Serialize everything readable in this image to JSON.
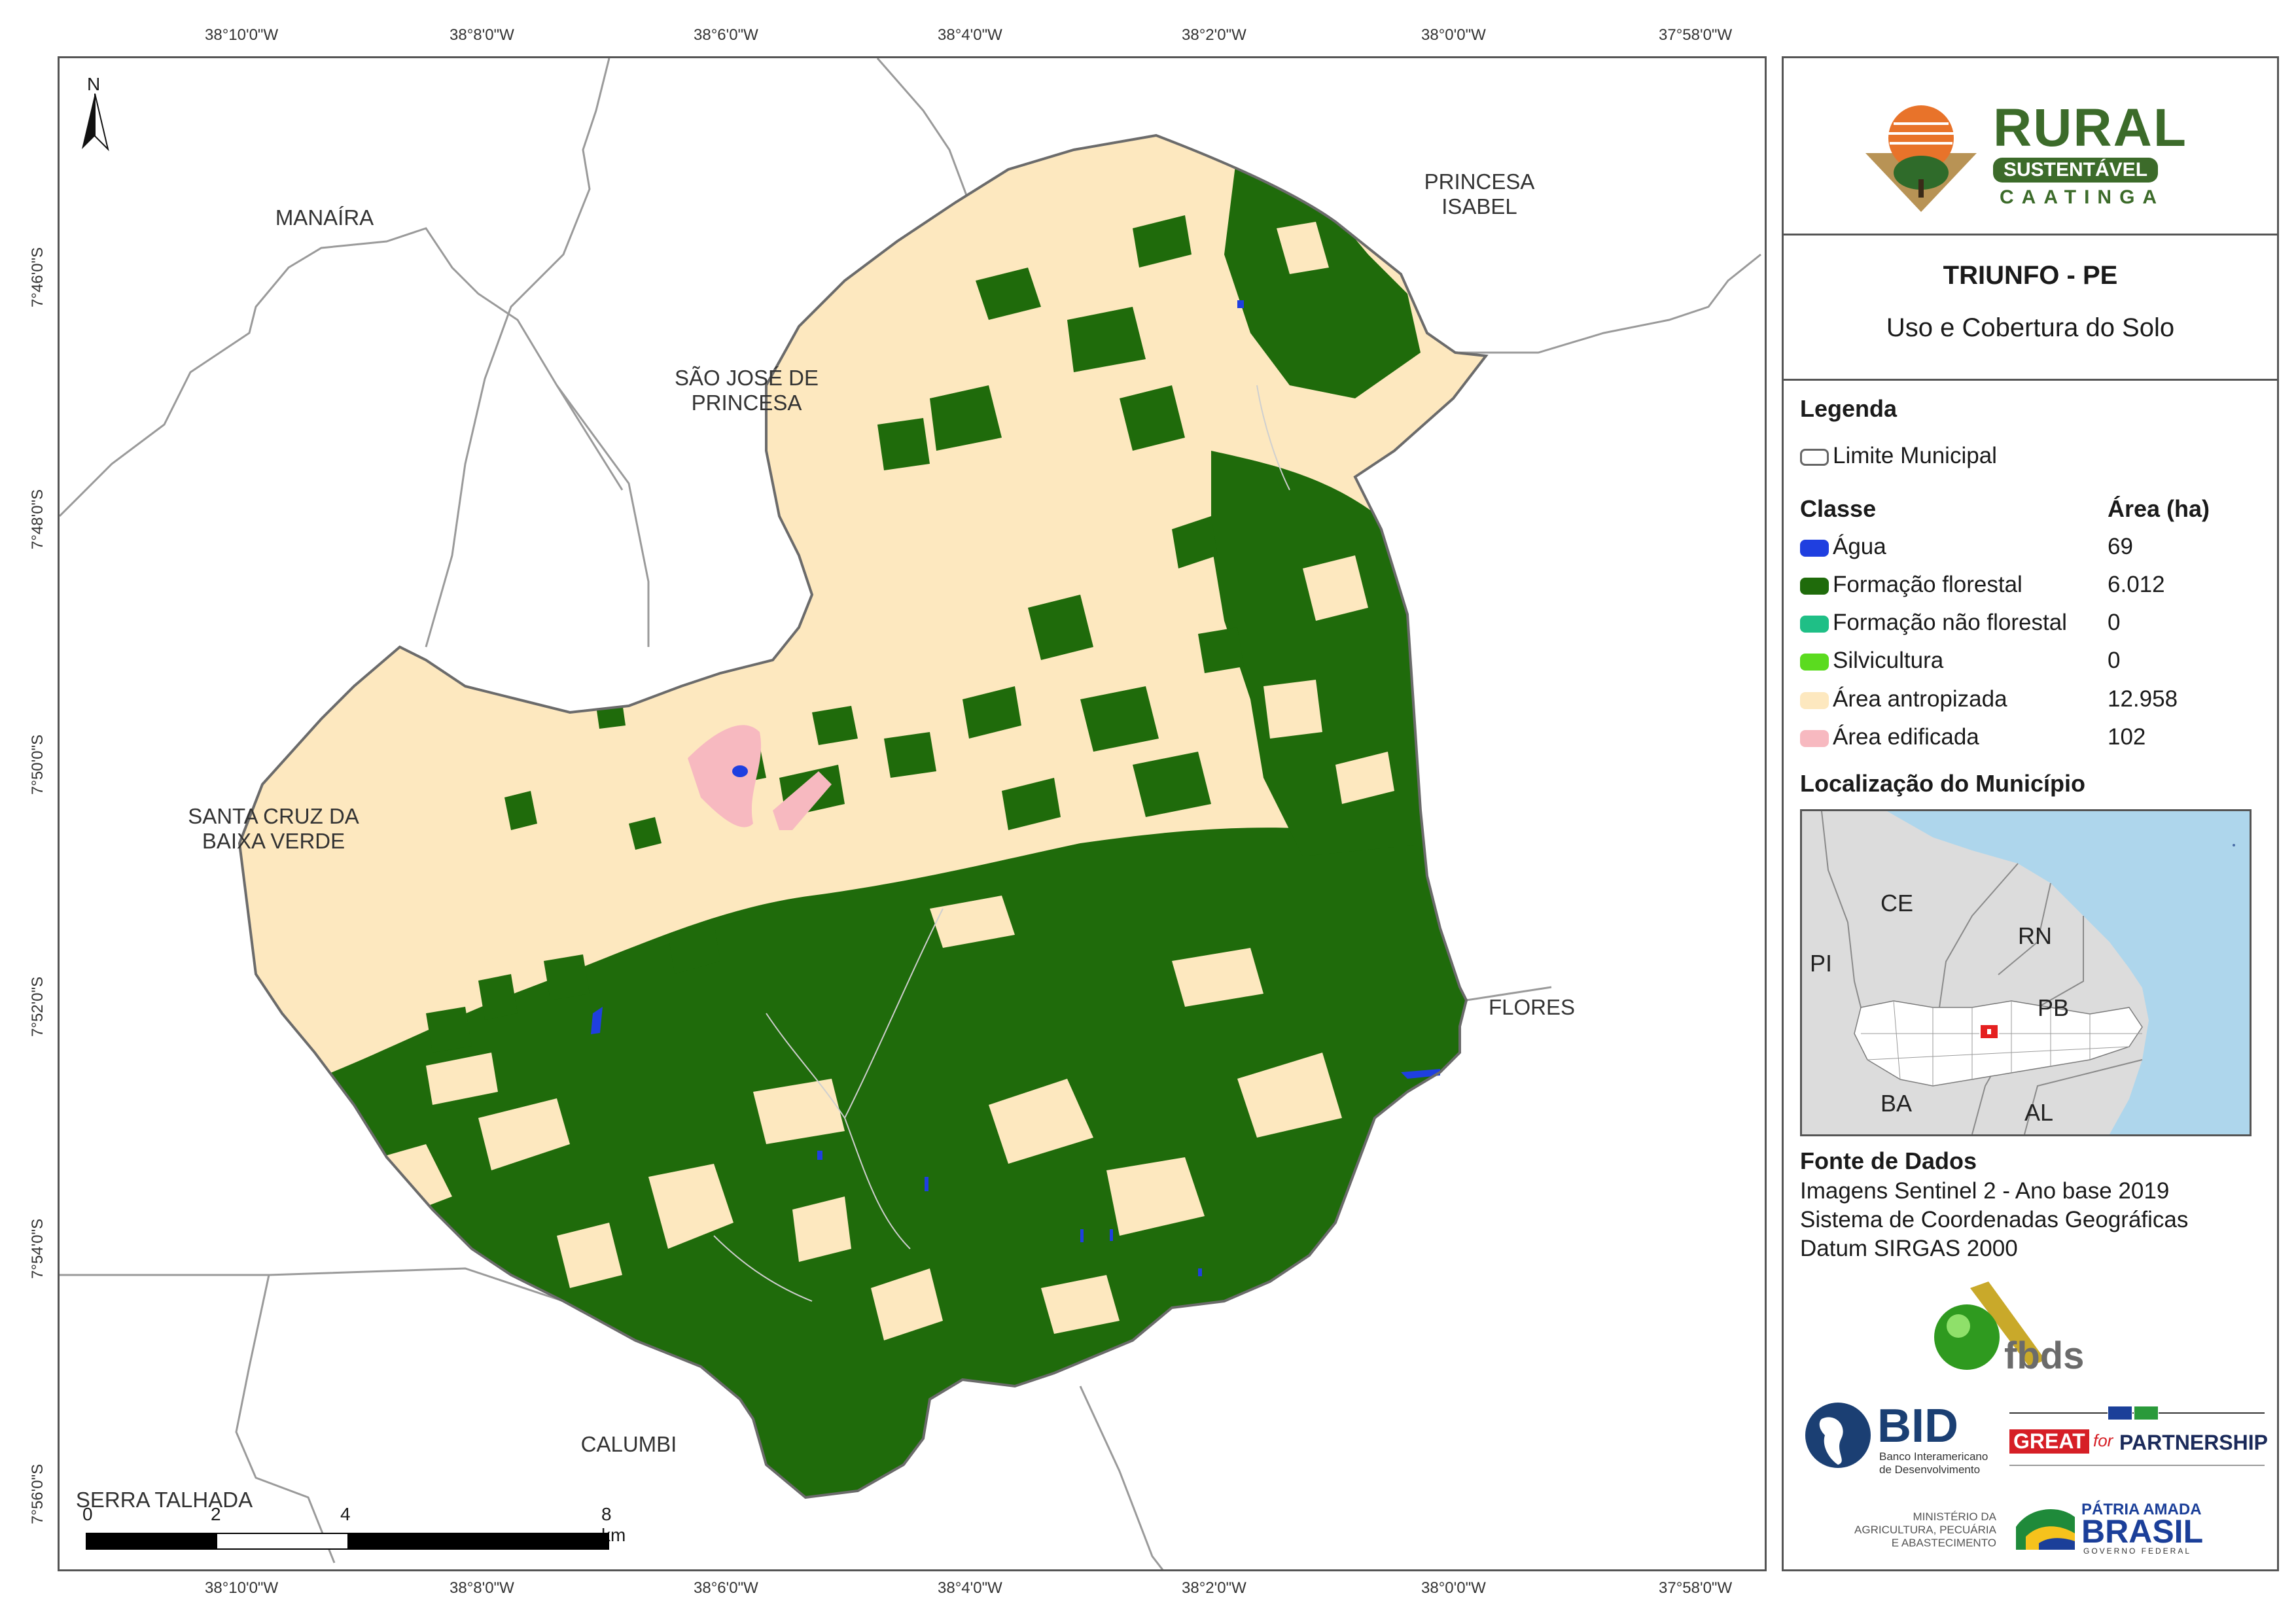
{
  "coords": {
    "top_lon": [
      "38°10'0\"W",
      "38°8'0\"W",
      "38°6'0\"W",
      "38°4'0\"W",
      "38°2'0\"W",
      "38°0'0\"W",
      "37°58'0\"W"
    ],
    "bottom_lon": [
      "38°10'0\"W",
      "38°8'0\"W",
      "38°6'0\"W",
      "38°4'0\"W",
      "38°2'0\"W",
      "38°0'0\"W",
      "37°58'0\"W"
    ],
    "left_lat": [
      "7°46'0\"S",
      "7°48'0\"S",
      "7°50'0\"S",
      "7°52'0\"S",
      "7°54'0\"S",
      "7°56'0\"S"
    ]
  },
  "map": {
    "north_label": "N",
    "places": {
      "manaira": "MANAÍRA",
      "princesa_isabel_1": "PRINCESA",
      "princesa_isabel_2": "ISABEL",
      "sao_jose_1": "SÃO JOSÉ DE",
      "sao_jose_2": "PRINCESA",
      "santa_cruz_1": "SANTA CRUZ DA",
      "santa_cruz_2": "BAIXA VERDE",
      "flores": "FLORES",
      "calumbi": "CALUMBI",
      "serra_talhada": "SERRA TALHADA"
    },
    "scale": {
      "labels": [
        "0",
        "2",
        "4",
        "8 km"
      ]
    },
    "colors": {
      "agua": "#1f3fe0",
      "formacao_florestal": "#1f6b0b",
      "formacao_nao_florestal": "#1fbf86",
      "silvicultura": "#5bdb1f",
      "area_antropizada": "#fde8bf",
      "area_edificada": "#f7b9c0"
    }
  },
  "panel": {
    "logo": {
      "line1": "RURAL",
      "line2": "SUSTENTÁVEL",
      "line3": "CAATINGA"
    },
    "title": "TRIUNFO - PE",
    "subtitle": "Uso e Cobertura do Solo",
    "legend": {
      "heading": "Legenda",
      "limit_label": "Limite Municipal",
      "class_header": "Classe",
      "area_header": "Área (ha)",
      "classes": [
        {
          "label": "Água",
          "value": "69"
        },
        {
          "label": "Formação florestal",
          "value": "6.012"
        },
        {
          "label": "Formação não florestal",
          "value": "0"
        },
        {
          "label": "Silvicultura",
          "value": "0"
        },
        {
          "label": "Área antropizada",
          "value": "12.958"
        },
        {
          "label": "Área edificada",
          "value": "102"
        }
      ]
    },
    "location": {
      "heading": "Localização do Município",
      "states": [
        "CE",
        "RN",
        "PI",
        "PB",
        "BA",
        "AL"
      ]
    },
    "source": {
      "heading": "Fonte de Dados",
      "lines": [
        "Imagens Sentinel 2 - Ano base 2019",
        "Sistema de Coordenadas Geográficas",
        "Datum SIRGAS 2000"
      ]
    },
    "logos": {
      "fbds": "fbds",
      "bid": "BID",
      "bid_sub1": "Banco Interamericano",
      "bid_sub2": "de Desenvolvimento",
      "great": "GREAT",
      "great_for": "for",
      "great_partnership": "PARTNERSHIP",
      "ministerio1": "MINISTÉRIO DA",
      "ministerio2": "AGRICULTURA, PECUÁRIA",
      "ministerio3": "E ABASTECIMENTO",
      "patria": "PÁTRIA AMADA",
      "brasil": "BRASIL",
      "governo": "GOVERNO FEDERAL"
    }
  }
}
